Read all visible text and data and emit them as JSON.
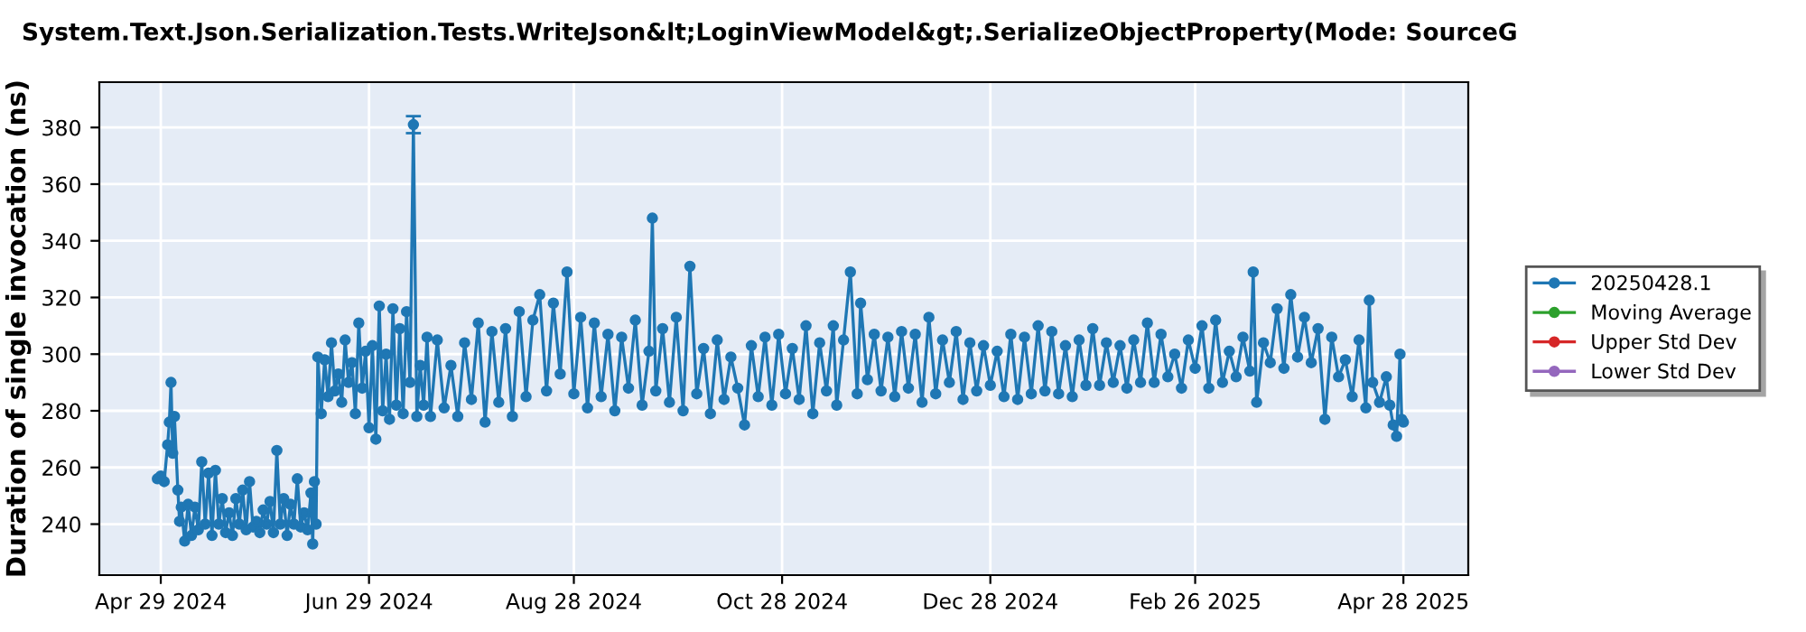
{
  "chart_data": {
    "type": "line",
    "title": "System.Text.Json.Serialization.Tests.WriteJson&lt;LoginViewModel&gt;.SerializeObjectProperty(Mode: SourceG",
    "ylabel": "Duration of single invocation (ns)",
    "xlim": [
      "2024-04-11",
      "2025-05-17"
    ],
    "xticks": [
      {
        "value": "2024-04-29",
        "label": "Apr 29 2024"
      },
      {
        "value": "2024-06-29",
        "label": "Jun 29 2024"
      },
      {
        "value": "2024-08-28",
        "label": "Aug 28 2024"
      },
      {
        "value": "2024-10-28",
        "label": "Oct 28 2024"
      },
      {
        "value": "2024-12-28",
        "label": "Dec 28 2024"
      },
      {
        "value": "2025-02-26",
        "label": "Feb 26 2025"
      },
      {
        "value": "2025-04-28",
        "label": "Apr 28 2025"
      }
    ],
    "ylim": [
      222,
      396
    ],
    "yticks": [
      240,
      260,
      280,
      300,
      320,
      340,
      360,
      380
    ],
    "grid": true,
    "legend": "right",
    "marker": "circle",
    "line_style": "solid",
    "series": [
      {
        "name": "20250428.1",
        "color": "#1f77b4",
        "x": [
          "2024-04-28",
          "2024-04-29",
          "2024-04-30",
          "2024-05-01",
          "2024-05-01T12:00",
          "2024-05-02",
          "2024-05-02T12:00",
          "2024-05-03",
          "2024-05-04",
          "2024-05-04T12:00",
          "2024-05-05",
          "2024-05-06",
          "2024-05-07",
          "2024-05-08",
          "2024-05-09",
          "2024-05-10",
          "2024-05-11",
          "2024-05-12",
          "2024-05-13",
          "2024-05-14",
          "2024-05-15",
          "2024-05-16",
          "2024-05-17",
          "2024-05-18",
          "2024-05-19",
          "2024-05-20",
          "2024-05-21",
          "2024-05-22",
          "2024-05-23",
          "2024-05-24",
          "2024-05-25",
          "2024-05-26",
          "2024-05-27",
          "2024-05-28",
          "2024-05-29",
          "2024-05-30",
          "2024-05-31",
          "2024-06-01",
          "2024-06-02",
          "2024-06-03",
          "2024-06-04",
          "2024-06-05",
          "2024-06-06",
          "2024-06-07",
          "2024-06-08",
          "2024-06-09",
          "2024-06-10",
          "2024-06-11",
          "2024-06-12",
          "2024-06-12T12:00",
          "2024-06-13",
          "2024-06-13T12:00",
          "2024-06-14",
          "2024-06-15",
          "2024-06-16",
          "2024-06-17",
          "2024-06-18",
          "2024-06-19",
          "2024-06-20",
          "2024-06-21",
          "2024-06-22",
          "2024-06-23",
          "2024-06-24",
          "2024-06-25",
          "2024-06-26",
          "2024-06-27",
          "2024-06-28",
          "2024-06-29",
          "2024-06-30",
          "2024-07-01",
          "2024-07-02",
          "2024-07-03",
          "2024-07-04",
          "2024-07-05",
          "2024-07-06",
          "2024-07-07",
          "2024-07-08",
          "2024-07-09",
          "2024-07-10",
          "2024-07-11",
          "2024-07-12",
          "2024-07-13",
          "2024-07-14",
          "2024-07-15",
          "2024-07-16",
          "2024-07-17",
          "2024-07-19",
          "2024-07-21",
          "2024-07-23",
          "2024-07-25",
          "2024-07-27",
          "2024-07-29",
          "2024-07-31",
          "2024-08-02",
          "2024-08-04",
          "2024-08-06",
          "2024-08-08",
          "2024-08-10",
          "2024-08-12",
          "2024-08-14",
          "2024-08-16",
          "2024-08-18",
          "2024-08-20",
          "2024-08-22",
          "2024-08-24",
          "2024-08-26",
          "2024-08-28",
          "2024-08-30",
          "2024-09-01",
          "2024-09-03",
          "2024-09-05",
          "2024-09-07",
          "2024-09-09",
          "2024-09-11",
          "2024-09-13",
          "2024-09-15",
          "2024-09-17",
          "2024-09-19",
          "2024-09-20",
          "2024-09-21",
          "2024-09-23",
          "2024-09-25",
          "2024-09-27",
          "2024-09-29",
          "2024-10-01",
          "2024-10-03",
          "2024-10-05",
          "2024-10-07",
          "2024-10-09",
          "2024-10-11",
          "2024-10-13",
          "2024-10-15",
          "2024-10-17",
          "2024-10-19",
          "2024-10-21",
          "2024-10-23",
          "2024-10-25",
          "2024-10-27",
          "2024-10-29",
          "2024-10-31",
          "2024-11-02",
          "2024-11-04",
          "2024-11-06",
          "2024-11-08",
          "2024-11-10",
          "2024-11-12",
          "2024-11-13",
          "2024-11-15",
          "2024-11-17",
          "2024-11-19",
          "2024-11-20",
          "2024-11-22",
          "2024-11-24",
          "2024-11-26",
          "2024-11-28",
          "2024-11-30",
          "2024-12-02",
          "2024-12-04",
          "2024-12-06",
          "2024-12-08",
          "2024-12-10",
          "2024-12-12",
          "2024-12-14",
          "2024-12-16",
          "2024-12-18",
          "2024-12-20",
          "2024-12-22",
          "2024-12-24",
          "2024-12-26",
          "2024-12-28",
          "2024-12-30",
          "2025-01-01",
          "2025-01-03",
          "2025-01-05",
          "2025-01-07",
          "2025-01-09",
          "2025-01-11",
          "2025-01-13",
          "2025-01-15",
          "2025-01-17",
          "2025-01-19",
          "2025-01-21",
          "2025-01-23",
          "2025-01-25",
          "2025-01-27",
          "2025-01-29",
          "2025-01-31",
          "2025-02-02",
          "2025-02-04",
          "2025-02-06",
          "2025-02-08",
          "2025-02-10",
          "2025-02-12",
          "2025-02-14",
          "2025-02-16",
          "2025-02-18",
          "2025-02-20",
          "2025-02-22",
          "2025-02-24",
          "2025-02-26",
          "2025-02-28",
          "2025-03-02",
          "2025-03-04",
          "2025-03-06",
          "2025-03-08",
          "2025-03-10",
          "2025-03-12",
          "2025-03-14",
          "2025-03-15",
          "2025-03-16",
          "2025-03-18",
          "2025-03-20",
          "2025-03-22",
          "2025-03-24",
          "2025-03-26",
          "2025-03-28",
          "2025-03-30",
          "2025-04-01",
          "2025-04-03",
          "2025-04-05",
          "2025-04-07",
          "2025-04-09",
          "2025-04-11",
          "2025-04-13",
          "2025-04-15",
          "2025-04-17",
          "2025-04-18",
          "2025-04-19",
          "2025-04-21",
          "2025-04-23",
          "2025-04-24",
          "2025-04-25",
          "2025-04-26",
          "2025-04-27",
          "2025-04-27T12:00",
          "2025-04-28"
        ],
        "values": [
          256,
          257,
          255,
          268,
          276,
          290,
          265,
          278,
          252,
          241,
          246,
          234,
          247,
          236,
          246,
          238,
          262,
          240,
          258,
          236,
          259,
          240,
          249,
          237,
          244,
          236,
          249,
          240,
          252,
          238,
          255,
          239,
          241,
          237,
          245,
          240,
          248,
          237,
          266,
          240,
          249,
          236,
          247,
          240,
          256,
          239,
          244,
          238,
          251,
          233,
          255,
          240,
          299,
          279,
          298,
          285,
          304,
          287,
          293,
          283,
          305,
          290,
          297,
          279,
          311,
          288,
          301,
          274,
          303,
          270,
          317,
          280,
          300,
          277,
          316,
          282,
          309,
          279,
          315,
          290,
          381,
          278,
          296,
          282,
          306,
          278,
          305,
          281,
          296,
          278,
          304,
          284,
          311,
          276,
          308,
          283,
          309,
          278,
          315,
          285,
          312,
          321,
          287,
          318,
          293,
          329,
          286,
          313,
          281,
          311,
          285,
          307,
          280,
          306,
          288,
          312,
          282,
          301,
          348,
          287,
          309,
          283,
          313,
          280,
          331,
          286,
          302,
          279,
          305,
          284,
          299,
          288,
          275,
          303,
          285,
          306,
          282,
          307,
          286,
          302,
          284,
          310,
          279,
          304,
          287,
          310,
          282,
          305,
          329,
          286,
          318,
          291,
          307,
          287,
          306,
          285,
          308,
          288,
          307,
          283,
          313,
          286,
          305,
          290,
          308,
          284,
          304,
          287,
          303,
          289,
          301,
          285,
          307,
          284,
          306,
          286,
          310,
          287,
          308,
          286,
          303,
          285,
          305,
          289,
          309,
          289,
          304,
          290,
          303,
          288,
          305,
          290,
          311,
          290,
          307,
          292,
          300,
          288,
          305,
          295,
          310,
          288,
          312,
          290,
          301,
          292,
          306,
          294,
          329,
          283,
          304,
          297,
          316,
          295,
          321,
          299,
          313,
          297,
          309,
          277,
          306,
          292,
          298,
          285,
          305,
          281,
          319,
          290,
          283,
          292,
          282,
          275,
          271,
          300,
          277,
          276
        ],
        "errors": [
          null,
          null,
          null,
          null,
          null,
          null,
          null,
          null,
          null,
          null,
          null,
          null,
          null,
          null,
          null,
          null,
          null,
          null,
          null,
          null,
          null,
          null,
          null,
          null,
          null,
          null,
          null,
          null,
          null,
          null,
          null,
          null,
          null,
          null,
          null,
          null,
          null,
          null,
          null,
          null,
          null,
          null,
          null,
          null,
          null,
          null,
          null,
          null,
          null,
          null,
          null,
          null,
          null,
          null,
          null,
          null,
          null,
          null,
          null,
          null,
          null,
          null,
          null,
          null,
          null,
          null,
          null,
          null,
          null,
          null,
          null,
          null,
          null,
          null,
          null,
          null,
          null,
          null,
          null,
          null,
          [
            378,
            384
          ],
          null,
          null,
          null,
          null,
          null,
          null,
          null,
          null,
          null,
          null,
          null,
          null,
          null,
          null,
          null,
          null,
          null,
          null,
          null,
          null,
          null,
          null,
          null,
          null,
          null,
          null,
          null,
          null,
          null,
          null,
          null,
          null,
          null,
          null,
          null,
          null,
          null,
          null,
          null,
          null,
          null,
          null,
          null,
          null,
          null,
          null,
          null,
          null,
          null,
          null,
          null,
          null,
          null,
          null,
          null,
          null,
          null,
          null,
          null,
          null,
          null,
          null,
          null,
          null,
          null,
          null,
          null,
          null,
          null,
          null,
          null,
          null,
          null,
          null,
          null,
          null,
          null,
          null,
          null,
          null,
          null,
          null,
          null,
          null,
          null,
          null,
          null,
          null,
          null,
          null,
          null,
          null,
          null,
          null,
          null,
          null,
          null,
          null,
          null,
          null,
          null,
          null,
          null,
          null,
          null,
          null,
          null,
          null,
          null,
          null,
          null,
          null,
          null,
          null,
          null,
          null,
          null,
          null,
          null,
          null,
          null,
          null,
          null,
          null,
          null,
          null,
          null,
          null,
          null,
          null,
          null,
          null,
          null,
          null,
          null,
          null,
          null,
          null,
          null,
          null,
          null,
          null,
          null,
          null,
          null,
          null,
          null,
          null,
          null,
          null,
          null,
          null,
          null,
          null,
          null
        ]
      },
      {
        "name": "Moving Average",
        "color": "#2ca02c"
      },
      {
        "name": "Upper Std Dev",
        "color": "#d62728"
      },
      {
        "name": "Lower Std Dev",
        "color": "#9467bd"
      }
    ]
  }
}
